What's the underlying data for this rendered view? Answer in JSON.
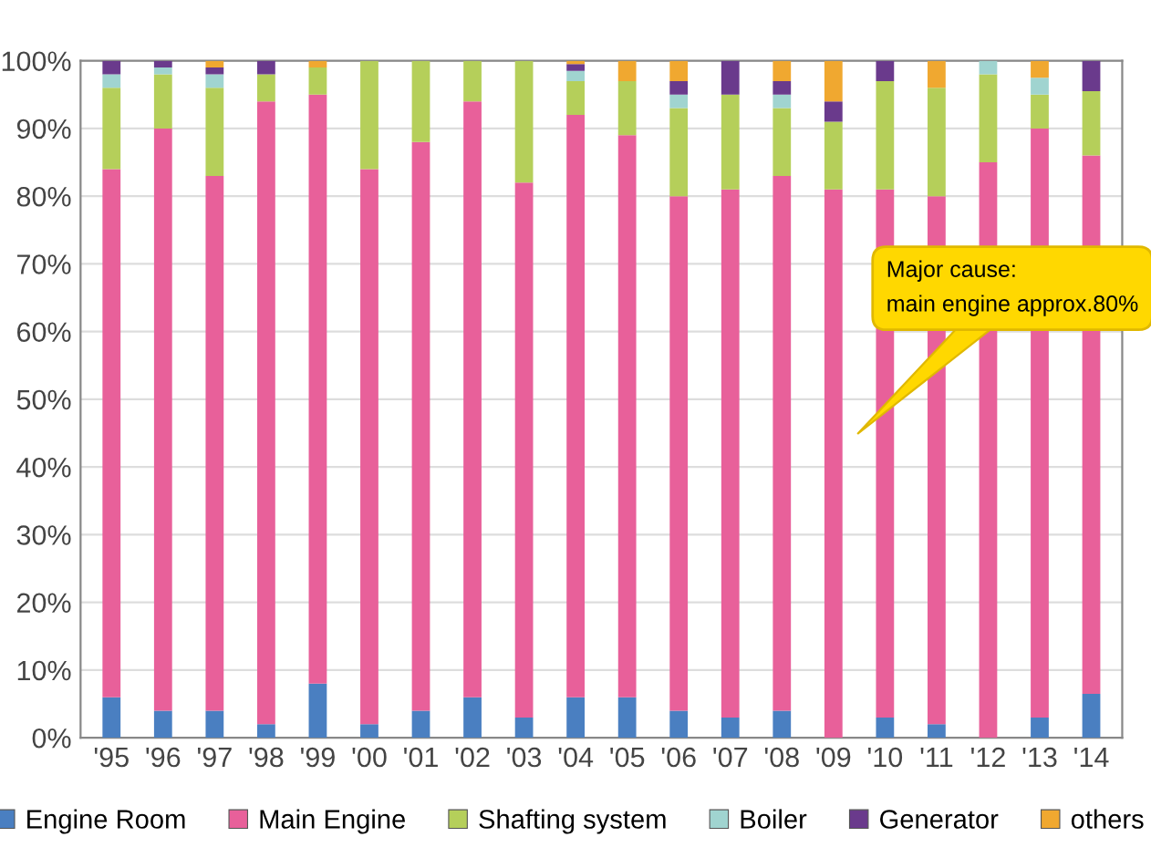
{
  "chart_data": {
    "type": "bar",
    "stacked": true,
    "categories": [
      "'95",
      "'96",
      "'97",
      "'98",
      "'99",
      "'00",
      "'01",
      "'02",
      "'03",
      "'04",
      "'05",
      "'06",
      "'07",
      "'08",
      "'09",
      "'10",
      "'11",
      "'12",
      "'13",
      "'14"
    ],
    "series": [
      {
        "name": "Engine Room",
        "color": "#4a7fc1",
        "values": [
          6,
          4,
          4,
          2,
          8,
          2,
          4,
          6,
          3,
          6,
          6,
          4,
          3,
          4,
          0,
          3,
          2,
          0,
          3,
          6.5
        ]
      },
      {
        "name": "Main Engine",
        "color": "#e8609a",
        "values": [
          78,
          86,
          79,
          92,
          87,
          82,
          84,
          88,
          79,
          86,
          83,
          76,
          78,
          79,
          81,
          78,
          78,
          85,
          87,
          79.5
        ]
      },
      {
        "name": "Shafting system",
        "color": "#b5cf5a",
        "values": [
          12,
          8,
          13,
          4,
          4,
          16,
          12,
          6,
          18,
          5,
          8,
          13,
          14,
          10,
          10,
          16,
          16,
          13,
          5,
          9.5
        ]
      },
      {
        "name": "Boiler",
        "color": "#a0d4d0",
        "values": [
          2,
          1,
          2,
          0,
          0,
          0,
          0,
          0,
          0,
          1.5,
          0,
          2,
          0,
          2,
          0,
          0,
          0,
          2,
          2.5,
          0
        ]
      },
      {
        "name": "Generator",
        "color": "#6a3a8c",
        "values": [
          2,
          1,
          1,
          2,
          0,
          0,
          0,
          0,
          0,
          1,
          0,
          2,
          5,
          2,
          3,
          3,
          0,
          0,
          0,
          4.5
        ]
      },
      {
        "name": "others",
        "color": "#f0a830",
        "values": [
          0,
          0,
          1,
          0,
          1,
          0,
          0,
          0,
          0,
          0.5,
          3,
          3,
          0,
          3,
          6,
          0,
          4,
          0,
          2.5,
          0
        ]
      }
    ],
    "ylim": [
      0,
      100
    ],
    "yticks": [
      {
        "value": 0,
        "label": "0%"
      },
      {
        "value": 10,
        "label": "10%"
      },
      {
        "value": 20,
        "label": "20%"
      },
      {
        "value": 30,
        "label": "30%"
      },
      {
        "value": 40,
        "label": "40%"
      },
      {
        "value": 50,
        "label": "50%"
      },
      {
        "value": 60,
        "label": "60%"
      },
      {
        "value": 70,
        "label": "70%"
      },
      {
        "value": 80,
        "label": "80%"
      },
      {
        "value": 90,
        "label": "90%"
      },
      {
        "value": 100,
        "label": "100%"
      }
    ],
    "grid": "y",
    "legend": "bottom",
    "annotations": [
      "Major cause:\nmain engine approx.80%"
    ]
  }
}
